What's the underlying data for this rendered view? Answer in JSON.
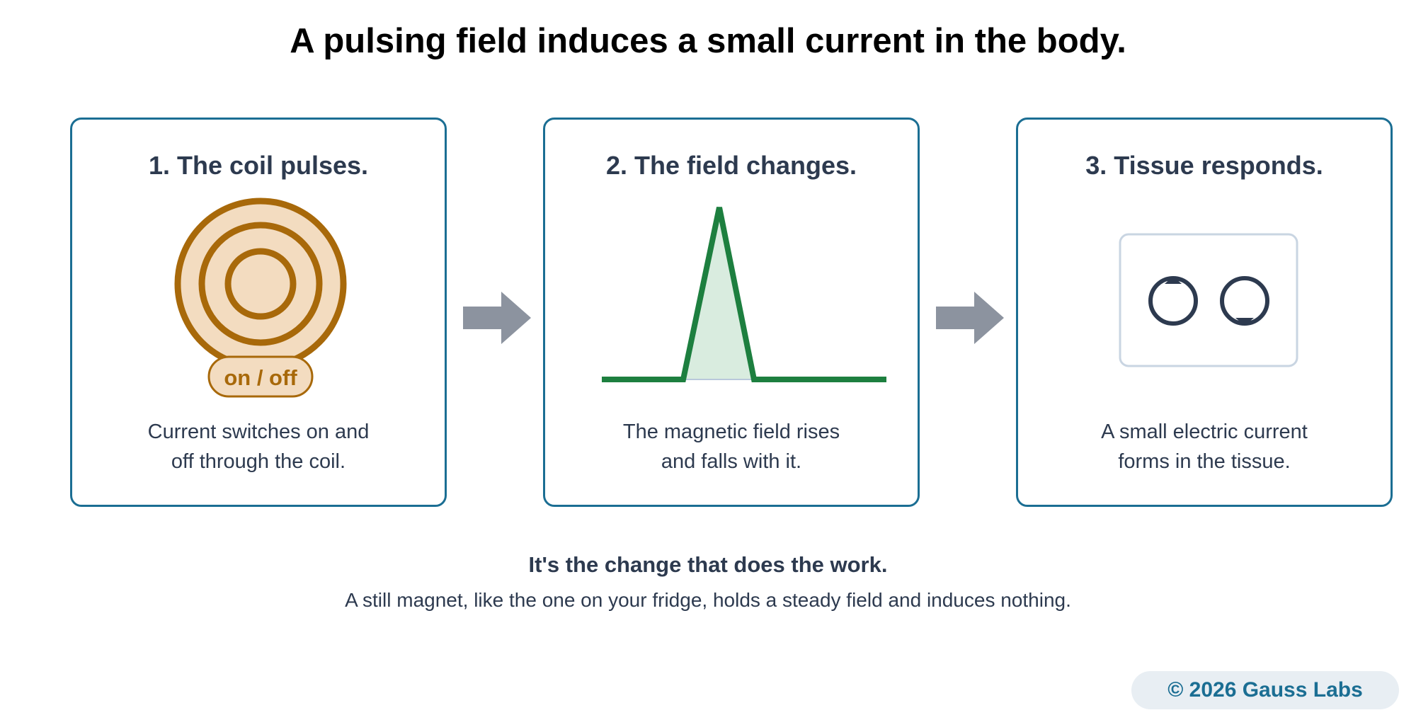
{
  "title": "A pulsing field induces a small current in the body.",
  "steps": [
    {
      "heading": "1. The coil pulses.",
      "icon": "coil-icon",
      "badge": "on / off",
      "caption_lines": [
        "Current switches on and",
        "off through the coil."
      ]
    },
    {
      "heading": "2. The field changes.",
      "icon": "pulse-waveform-icon",
      "caption_lines": [
        "The magnetic field rises",
        "and falls with it."
      ]
    },
    {
      "heading": "3. Tissue responds.",
      "icon": "induced-current-loops-icon",
      "caption_lines": [
        "A small electric current",
        "forms in the tissue."
      ]
    }
  ],
  "footer": {
    "heading": "It's the change that does the work.",
    "text": "A still magnet, like the one on your fridge, holds a steady field and induces nothing."
  },
  "copyright": "© 2026 Gauss Labs",
  "colors": {
    "panel_border": "#1b6e93",
    "text": "#2d3a4f",
    "coil": "#a8690a",
    "coil_fill": "#f3dcc0",
    "pulse": "#1d7f3f",
    "pulse_fill": "#d9ecdf",
    "arrow": "#8c939f",
    "copyright_bg": "#e8eef3"
  }
}
